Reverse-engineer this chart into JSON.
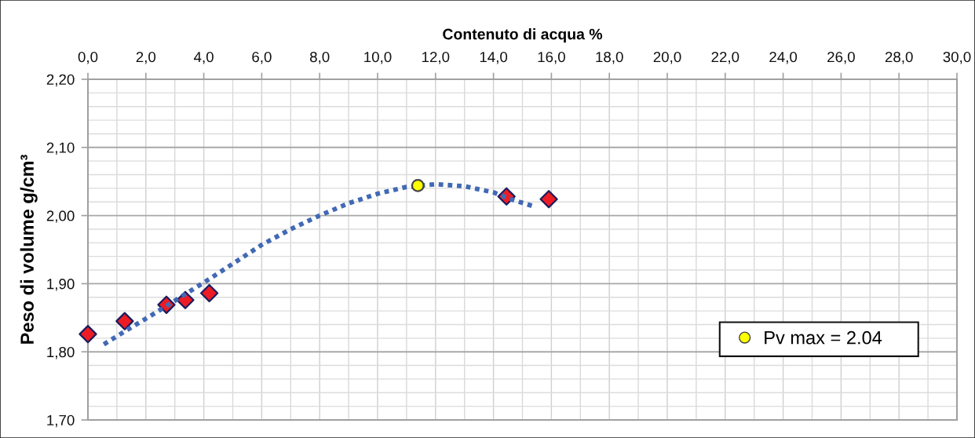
{
  "chart_data": {
    "type": "scatter",
    "xlabel": "Contenuto di acqua %",
    "ylabel": "Peso di volume g/cm³",
    "xlim": [
      0,
      30
    ],
    "xticks": [
      {
        "value": 0,
        "label": "0,0"
      },
      {
        "value": 2,
        "label": "2,0"
      },
      {
        "value": 4,
        "label": "4,0"
      },
      {
        "value": 6,
        "label": "6,0"
      },
      {
        "value": 8,
        "label": "8,0"
      },
      {
        "value": 10,
        "label": "10,0"
      },
      {
        "value": 12,
        "label": "12,0"
      },
      {
        "value": 14,
        "label": "14,0"
      },
      {
        "value": 16,
        "label": "16,0"
      },
      {
        "value": 18,
        "label": "18,0"
      },
      {
        "value": 20,
        "label": "20,0"
      },
      {
        "value": 22,
        "label": "22,0"
      },
      {
        "value": 24,
        "label": "24,0"
      },
      {
        "value": 26,
        "label": "26,0"
      },
      {
        "value": 28,
        "label": "28,0"
      },
      {
        "value": 30,
        "label": "30,0"
      }
    ],
    "ylim": [
      1.7,
      2.2
    ],
    "yticks": [
      {
        "value": 1.7,
        "label": "1,70"
      },
      {
        "value": 1.8,
        "label": "1,80"
      },
      {
        "value": 1.9,
        "label": "1,90"
      },
      {
        "value": 2.0,
        "label": "2,00"
      },
      {
        "value": 2.1,
        "label": "2,10"
      },
      {
        "value": 2.2,
        "label": "2,20"
      }
    ],
    "grid": true,
    "legend": "bottom right",
    "series": [
      {
        "marker": "diamond",
        "color": "#ed1c24",
        "x": [
          0.0,
          1.27,
          2.71,
          3.36,
          4.19,
          14.45,
          15.91
        ],
        "values": [
          1.826,
          1.845,
          1.869,
          1.876,
          1.886,
          2.028,
          2.024
        ]
      },
      {
        "type": "line",
        "marker": "none",
        "line_style": "dotted",
        "color": "#4169b4",
        "x": [
          0.55,
          1.5,
          2.4,
          3.3,
          4.2,
          5.1,
          6.0,
          7.0,
          8.0,
          9.0,
          10.0,
          11.0,
          12.0,
          13.0,
          14.0,
          14.6,
          15.35
        ],
        "values": [
          1.811,
          1.836,
          1.859,
          1.883,
          1.907,
          1.932,
          1.957,
          1.98,
          2.0,
          2.018,
          2.032,
          2.042,
          2.046,
          2.043,
          2.034,
          2.024,
          2.014
        ]
      },
      {
        "marker": "circle",
        "color": "#ffff00",
        "name": "Pv max = 2.04",
        "x": [
          11.39
        ],
        "values": [
          2.044
        ]
      }
    ]
  }
}
